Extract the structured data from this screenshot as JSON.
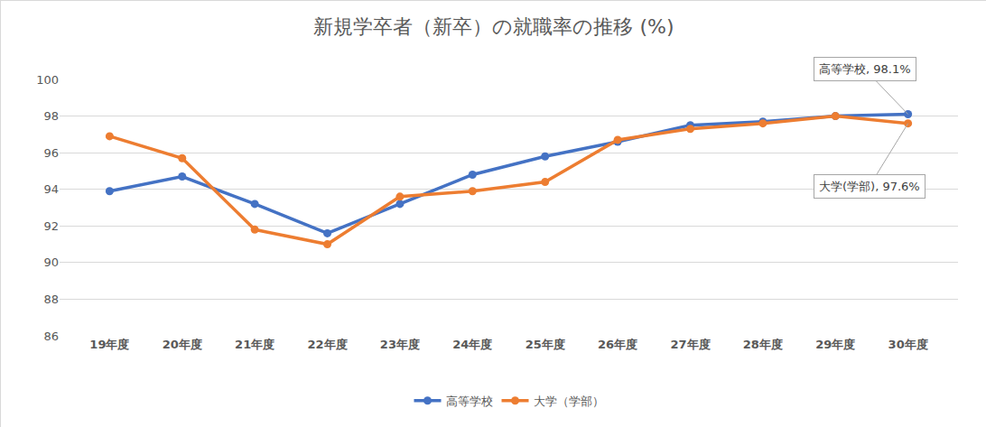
{
  "chart_data": {
    "type": "line",
    "title": "新規学卒者（新卒）の就職率の推移 (%)",
    "categories": [
      "19年度",
      "20年度",
      "21年度",
      "22年度",
      "23年度",
      "24年度",
      "25年度",
      "26年度",
      "27年度",
      "28年度",
      "29年度",
      "30年度"
    ],
    "series": [
      {
        "name": "高等学校",
        "color": "#4472c4",
        "marker": "circle",
        "values": [
          93.9,
          94.7,
          93.2,
          91.6,
          93.2,
          94.8,
          95.8,
          96.6,
          97.5,
          97.7,
          98.0,
          98.1
        ]
      },
      {
        "name": "大学（学部）",
        "color": "#ed7d31",
        "marker": "circle",
        "values": [
          96.9,
          95.7,
          91.8,
          91.0,
          93.6,
          93.9,
          94.4,
          96.7,
          97.3,
          97.6,
          98.0,
          97.6
        ]
      }
    ],
    "annotations": [
      {
        "text": "高等学校, 98.1%",
        "series": "高等学校",
        "category": "30年度"
      },
      {
        "text": "大学(学部), 97.6%",
        "series": "大学（学部）",
        "category": "30年度"
      }
    ],
    "ylim": [
      86,
      100
    ],
    "yticks": [
      86,
      88,
      90,
      92,
      94,
      96,
      98,
      100
    ],
    "grid": true,
    "legend": "bottom"
  }
}
